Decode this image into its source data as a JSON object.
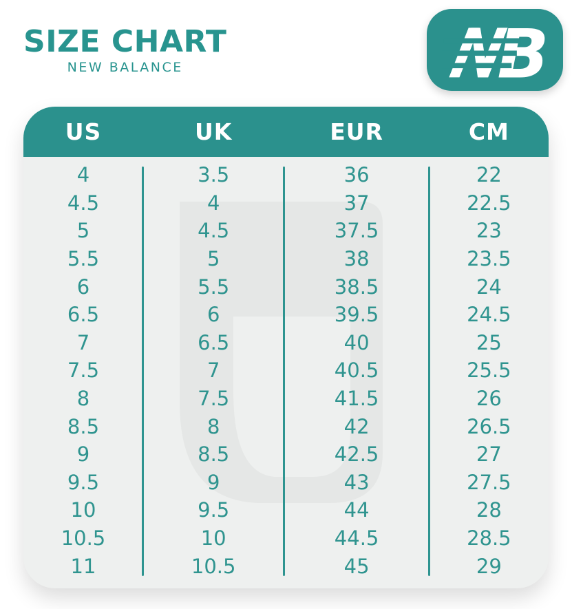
{
  "header": {
    "title": "SIZE CHART",
    "subtitle": "NEW BALANCE"
  },
  "logo": {
    "name": "new-balance-logo",
    "letter_b": "B"
  },
  "colors": {
    "accent_teal": "#2B918D",
    "text_teal": "#2F948F",
    "divider_teal": "#2E9490",
    "header_text": "#FFFFFF",
    "table_background": "#EEF0EF",
    "watermark_gray": "#E5E7E6",
    "page_background": "#FFFFFF"
  },
  "chart_data": {
    "type": "table",
    "title": "SIZE CHART",
    "subtitle": "NEW BALANCE",
    "columns": [
      "US",
      "UK",
      "EUR",
      "CM"
    ],
    "rows": [
      [
        "4",
        "3.5",
        "36",
        "22"
      ],
      [
        "4.5",
        "4",
        "37",
        "22.5"
      ],
      [
        "5",
        "4.5",
        "37.5",
        "23"
      ],
      [
        "5.5",
        "5",
        "38",
        "23.5"
      ],
      [
        "6",
        "5.5",
        "38.5",
        "24"
      ],
      [
        "6.5",
        "6",
        "39.5",
        "24.5"
      ],
      [
        "7",
        "6.5",
        "40",
        "25"
      ],
      [
        "7.5",
        "7",
        "40.5",
        "25.5"
      ],
      [
        "8",
        "7.5",
        "41.5",
        "26"
      ],
      [
        "8.5",
        "8",
        "42",
        "26.5"
      ],
      [
        "9",
        "8.5",
        "42.5",
        "27"
      ],
      [
        "9.5",
        "9",
        "43",
        "27.5"
      ],
      [
        "10",
        "9.5",
        "44",
        "28"
      ],
      [
        "10.5",
        "10",
        "44.5",
        "28.5"
      ],
      [
        "11",
        "10.5",
        "45",
        "29"
      ]
    ]
  }
}
